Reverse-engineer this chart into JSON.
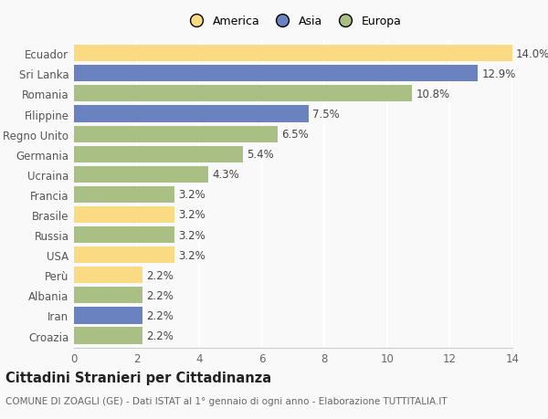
{
  "countries": [
    "Ecuador",
    "Sri Lanka",
    "Romania",
    "Filippine",
    "Regno Unito",
    "Germania",
    "Ucraina",
    "Francia",
    "Brasile",
    "Russia",
    "USA",
    "Perù",
    "Albania",
    "Iran",
    "Croazia"
  ],
  "values": [
    14.0,
    12.9,
    10.8,
    7.5,
    6.5,
    5.4,
    4.3,
    3.2,
    3.2,
    3.2,
    3.2,
    2.2,
    2.2,
    2.2,
    2.2
  ],
  "continents": [
    "America",
    "Asia",
    "Europa",
    "Asia",
    "Europa",
    "Europa",
    "Europa",
    "Europa",
    "America",
    "Europa",
    "America",
    "America",
    "Europa",
    "Asia",
    "Europa"
  ],
  "colors": {
    "America": "#FADA82",
    "Asia": "#6A82C0",
    "Europa": "#AABF84"
  },
  "legend_labels": [
    "America",
    "Asia",
    "Europa"
  ],
  "xlim": [
    0,
    14
  ],
  "xticks": [
    0,
    2,
    4,
    6,
    8,
    10,
    12,
    14
  ],
  "title": "Cittadini Stranieri per Cittadinanza",
  "subtitle": "COMUNE DI ZOAGLI (GE) - Dati ISTAT al 1° gennaio di ogni anno - Elaborazione TUTTITALIA.IT",
  "bg_color": "#f9f9f9",
  "bar_height": 0.82,
  "label_fontsize": 8.5,
  "tick_fontsize": 8.5,
  "title_fontsize": 10.5,
  "subtitle_fontsize": 7.5
}
